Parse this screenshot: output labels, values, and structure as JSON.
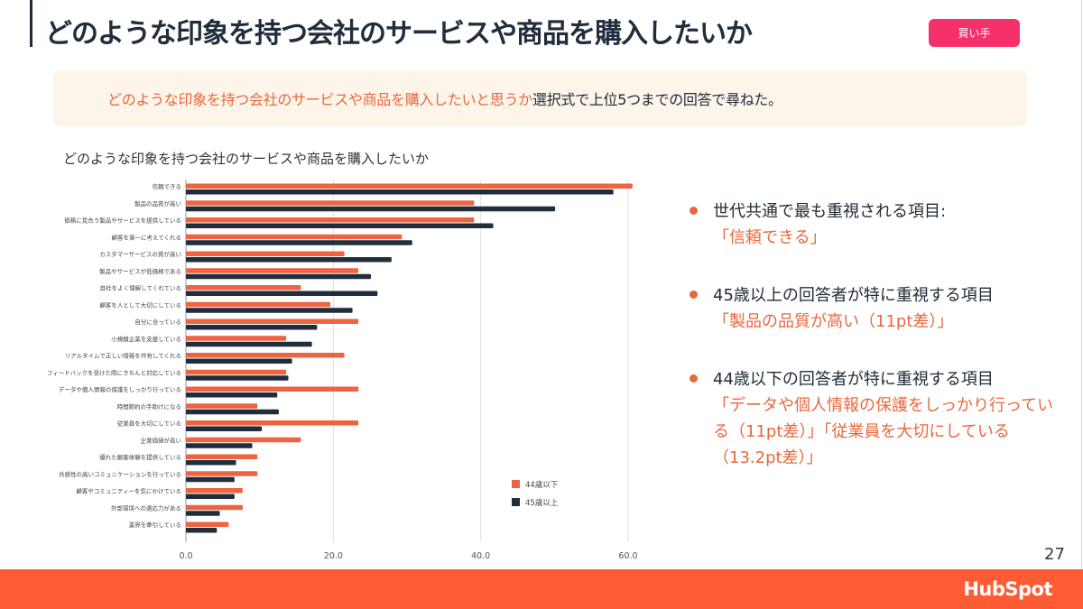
{
  "header": {
    "title": "どのような印象を持つ会社のサービスや商品を購入したいか",
    "badge": "買い手"
  },
  "question": {
    "highlight": "どのような印象を持つ会社のサービスや商品を購入したいと思うか",
    "rest": "選択式で上位5つまでの回答で尋ねた。"
  },
  "chart_title": "どのような印象を持つ会社のサービスや商品を購入したいか",
  "chart_data": {
    "type": "bar",
    "orientation": "horizontal",
    "title": "どのような印象を持つ会社のサービスや商品を購入したいか",
    "xlabel": "",
    "ylabel": "",
    "xlim": [
      0,
      60
    ],
    "xticks": [
      "0.0",
      "20.0",
      "40.0",
      "60.0"
    ],
    "grid": true,
    "legend_position": "bottom-right",
    "categories": [
      "信頼できる",
      "製品の品質が高い",
      "価格に見合う製品やサービスを提供している",
      "顧客を第一に考えてくれる",
      "カスタマーサービスの質が高い",
      "製品やサービスが低価格である",
      "自社をよく理解してくれている",
      "顧客を人として大切にしている",
      "自分に合っている",
      "小規模企業を支援している",
      "リアルタイムで正しい情報を共有してくれる",
      "フィードバックを受けた際にきちんと対応している",
      "データや個人情報の保護をしっかり行っている",
      "時間節約の手助けになる",
      "従業員を大切にしている",
      "企業価値が高い",
      "優れた顧客体験を提供している",
      "共感性の高いコミュニケーションを行っている",
      "顧客やコミュニティーを気にかけている",
      "外部環境への適応力がある",
      "業界を牽引している"
    ],
    "series": [
      {
        "name": "44歳以下",
        "color": "#ee6340",
        "values": [
          60.6,
          39.1,
          39.1,
          29.3,
          21.5,
          23.4,
          15.6,
          19.6,
          23.4,
          13.6,
          21.5,
          13.6,
          23.4,
          9.7,
          23.4,
          15.6,
          9.7,
          9.7,
          7.7,
          7.7,
          5.8
        ]
      },
      {
        "name": "45歳以上",
        "color": "#1f2d3d",
        "values": [
          58.0,
          50.1,
          41.7,
          30.7,
          27.9,
          25.1,
          26.0,
          22.6,
          17.8,
          17.1,
          14.4,
          13.9,
          12.4,
          12.6,
          10.3,
          9.0,
          6.8,
          6.6,
          6.6,
          4.6,
          4.2
        ]
      }
    ]
  },
  "insights": [
    {
      "head": "世代共通で最も重視される項目:",
      "body": "「信頼できる」"
    },
    {
      "head": "45歳以上の回答者が特に重視する項目",
      "body": "「製品の品質が高い（11pt差）」"
    },
    {
      "head": "44歳以下の回答者が特に重視する項目",
      "body": "「データや個人情報の保護をしっかり行っている（11pt差）」「従業員を大切にしている（13.2pt差）」"
    }
  ],
  "page_number": "27",
  "footer": {
    "logo": "HubSpot",
    "color": "#ff5c35"
  }
}
